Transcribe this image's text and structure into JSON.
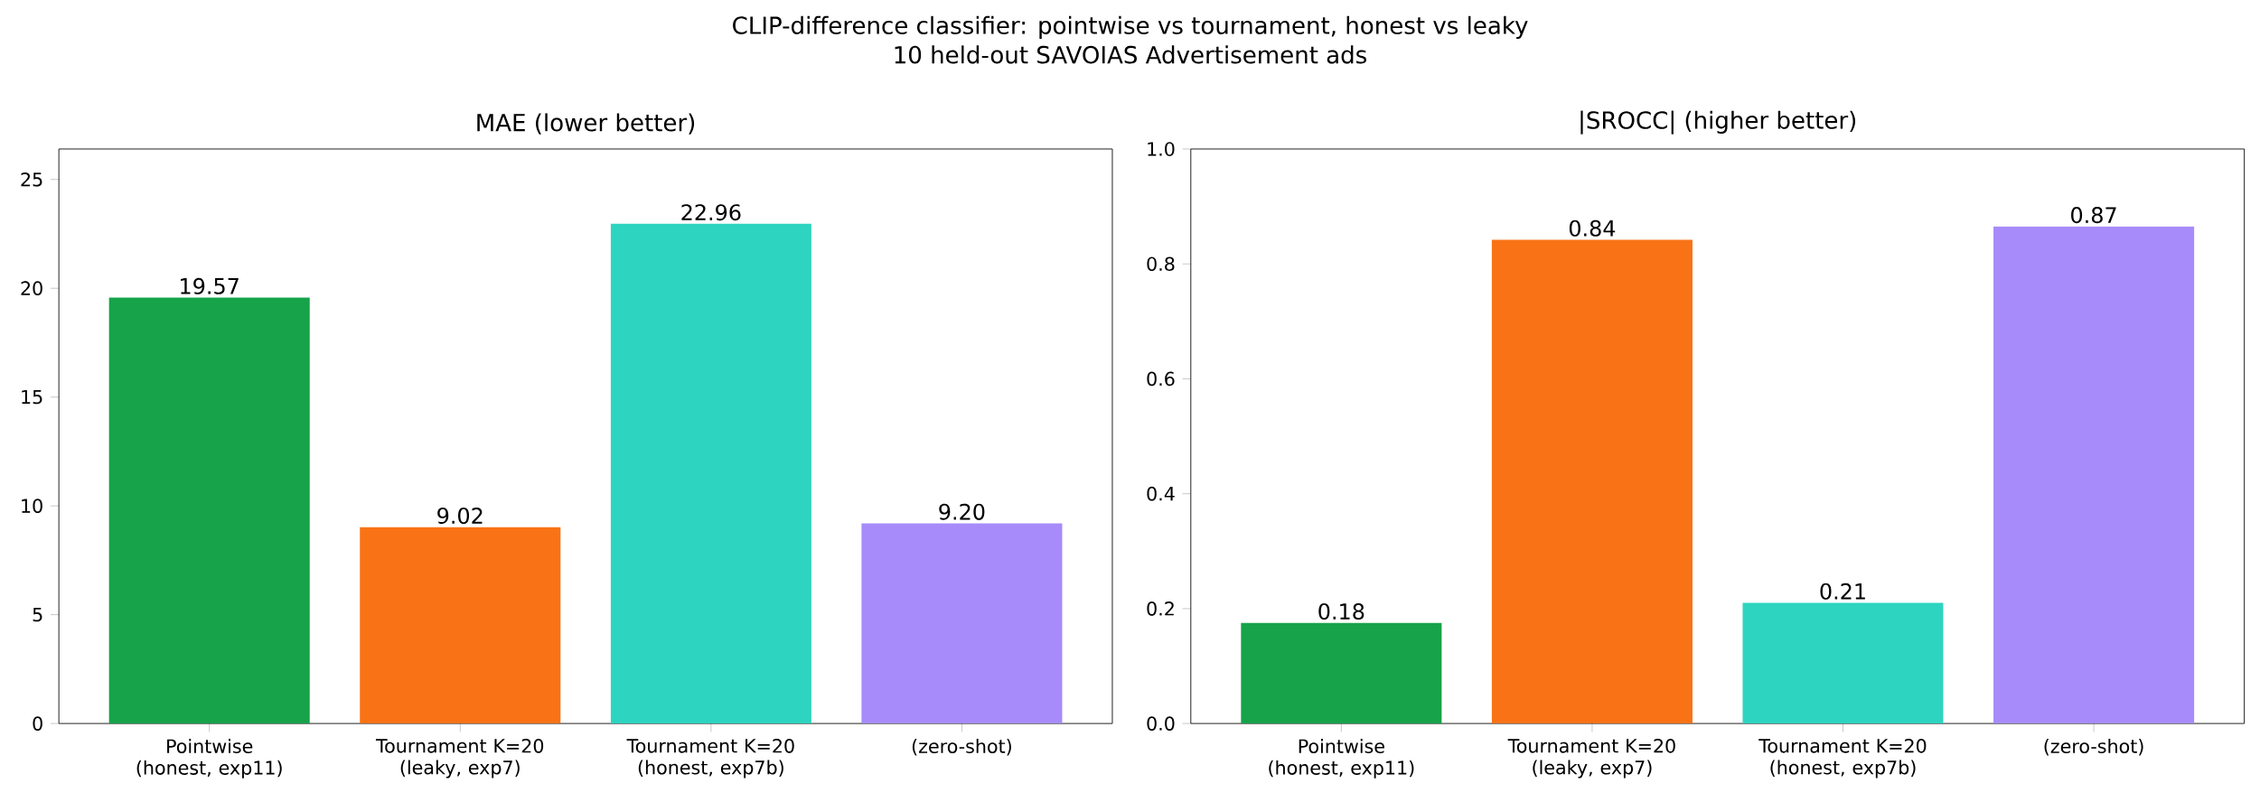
{
  "chart_data": [
    {
      "type": "bar",
      "title": "MAE  (lower better)",
      "annotations": [
        "CLIP-difference classifier: pointwise vs tournament, honest vs leaky",
        "10 held-out SAVOIAS Advertisement ads"
      ],
      "categories": [
        "Pointwise (honest, exp11)",
        "Tournament K=20 (leaky, exp7)",
        "Tournament K=20 (honest, exp7b)",
        "(zero-shot)"
      ],
      "values": [
        19.57,
        9.02,
        22.96,
        9.2
      ],
      "value_labels": [
        "19.57",
        "9.02",
        "22.96",
        "9.20"
      ],
      "colors": [
        "#16a34a",
        "#f97316",
        "#2dd4bf",
        "#a78bfa"
      ],
      "ylim": [
        0,
        26.4
      ],
      "yticks": [
        0,
        5,
        10,
        15,
        20,
        25
      ]
    },
    {
      "type": "bar",
      "title": "|SROCC|  (higher better)",
      "categories": [
        "Pointwise (honest, exp11)",
        "Tournament K=20 (leaky, exp7)",
        "Tournament K=20 (honest, exp7b)",
        "(zero-shot)"
      ],
      "values": [
        0.175,
        0.842,
        0.21,
        0.865
      ],
      "value_labels": [
        "0.18",
        "0.84",
        "0.21",
        "0.87"
      ],
      "colors": [
        "#16a34a",
        "#f97316",
        "#2dd4bf",
        "#a78bfa"
      ],
      "ylim": [
        0,
        1.0
      ],
      "yticks": [
        {
          "value": 0,
          "label": "0.0"
        },
        {
          "value": 0.2,
          "label": "0.2"
        },
        {
          "value": 0.4,
          "label": "0.4"
        },
        {
          "value": 0.6,
          "label": "0.6"
        },
        {
          "value": 0.8,
          "label": "0.8"
        },
        {
          "value": 1.0,
          "label": "1.0"
        }
      ]
    }
  ]
}
